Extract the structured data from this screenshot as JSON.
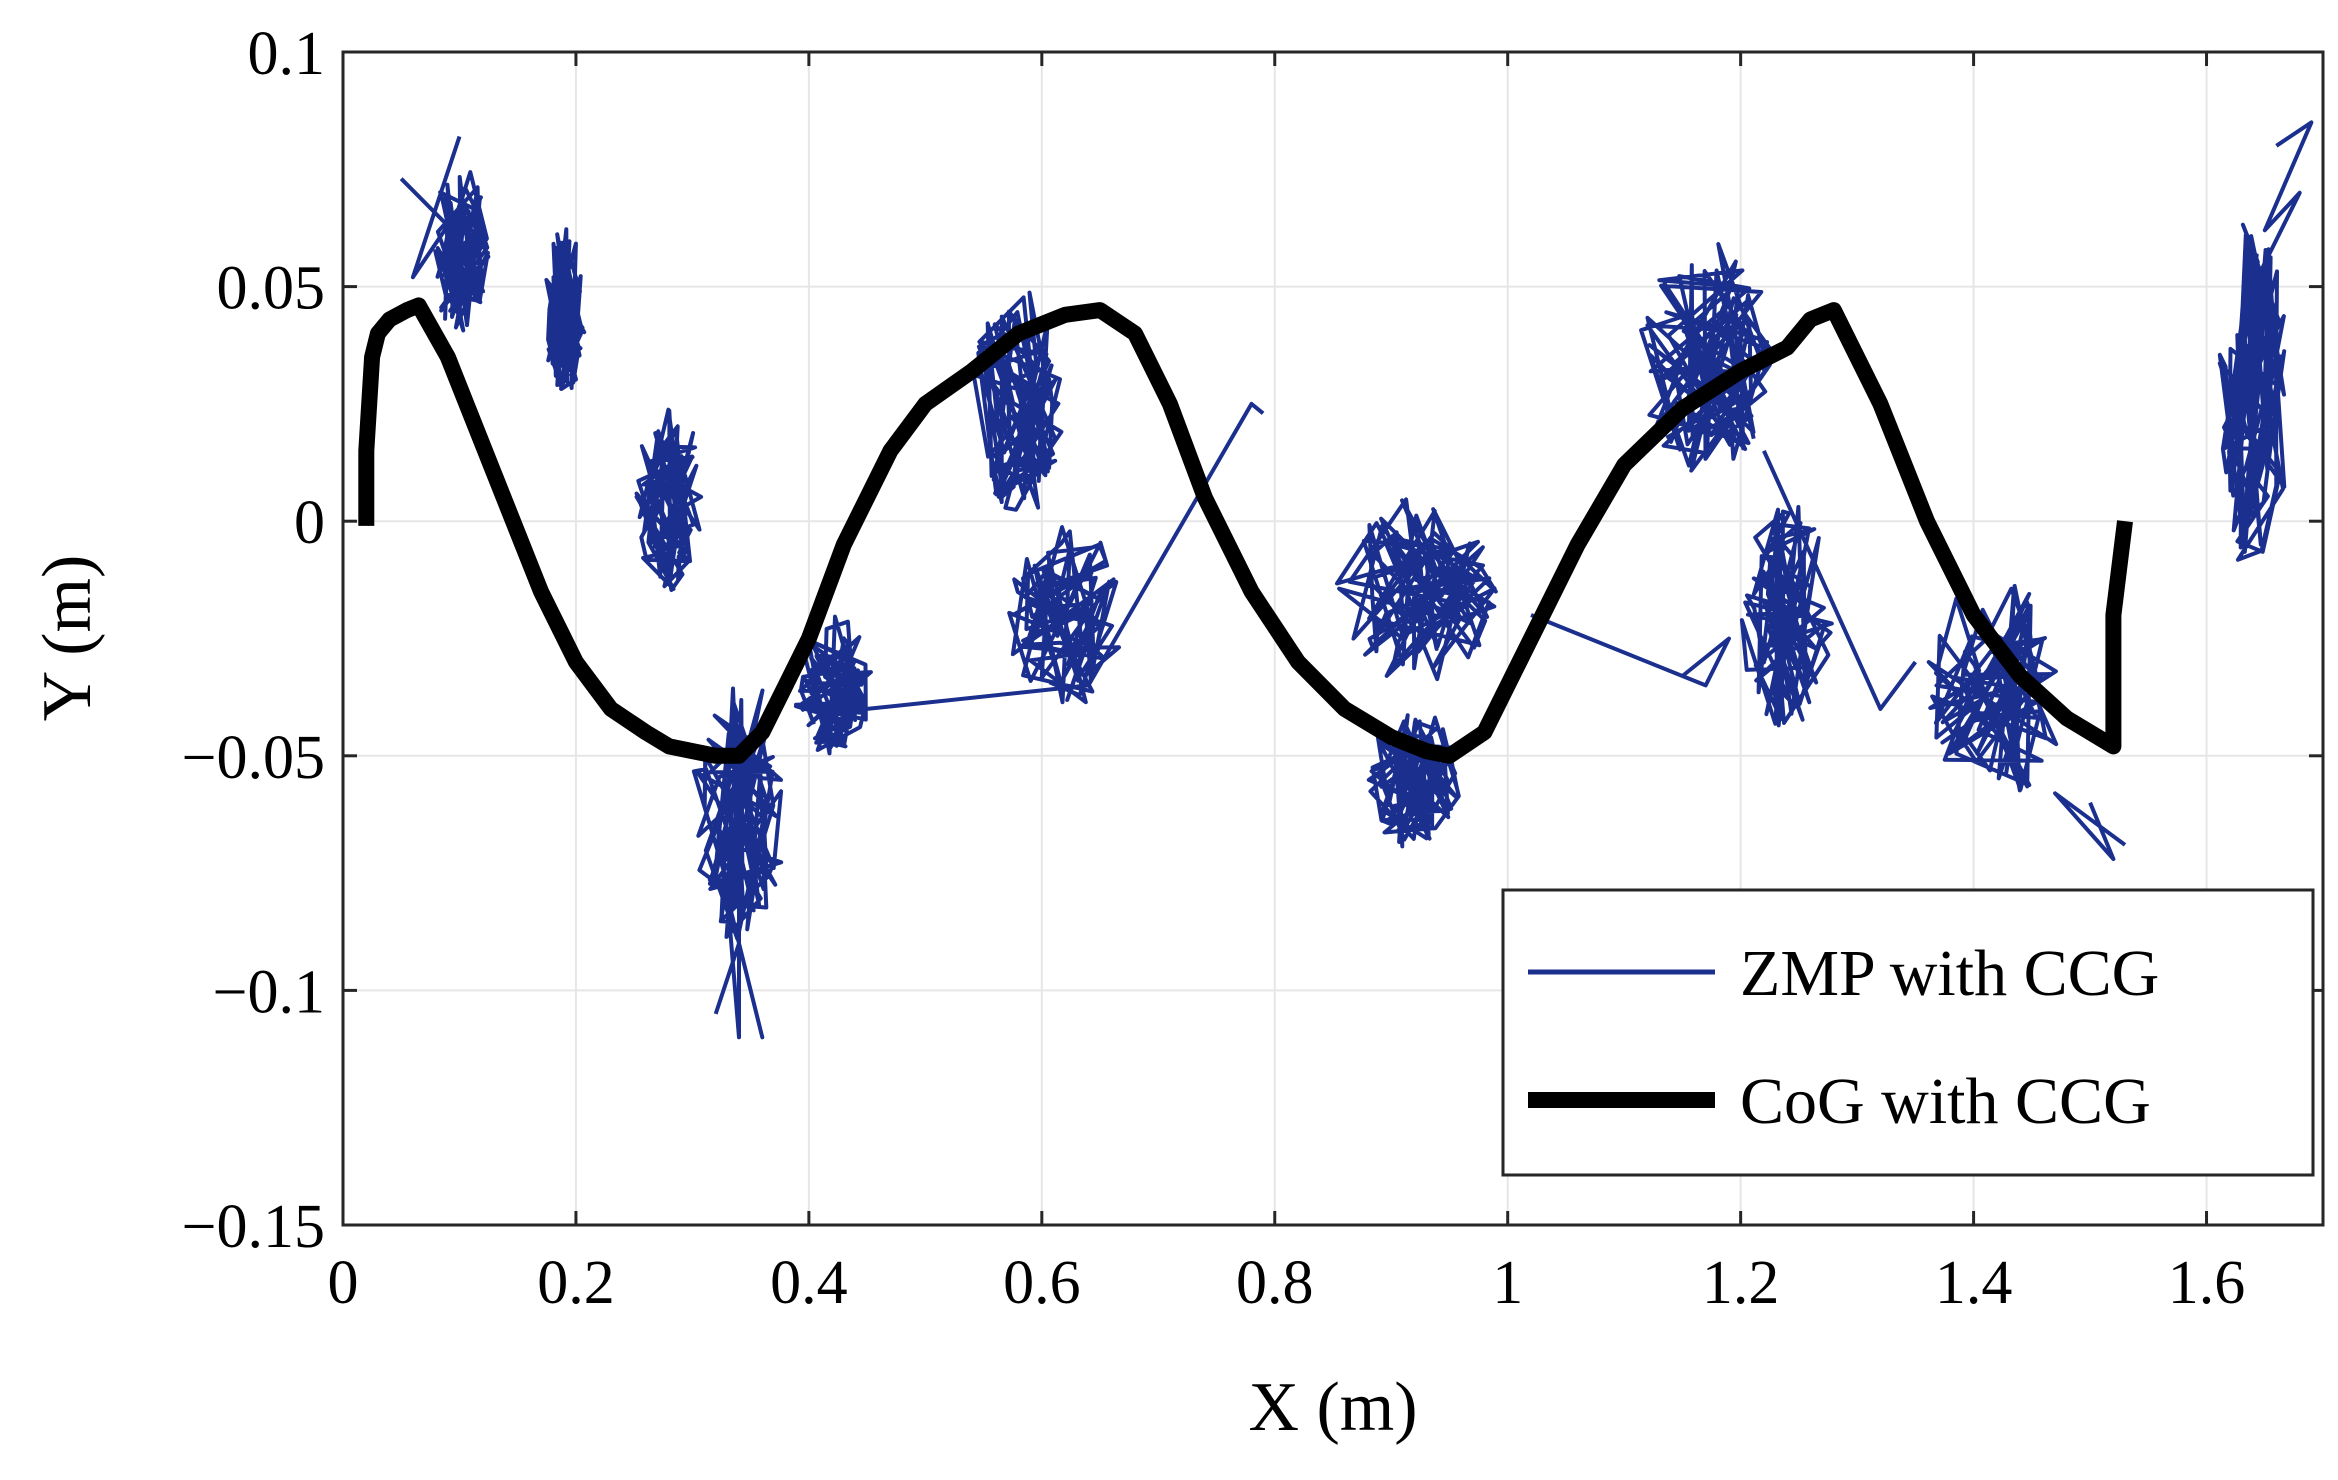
{
  "chart_data": {
    "type": "line",
    "title": "",
    "xlabel": "X (m)",
    "ylabel": "Y (m)",
    "xlim": [
      0,
      1.7
    ],
    "ylim": [
      -0.15,
      0.1
    ],
    "xticks": [
      0,
      0.2,
      0.4,
      0.6,
      0.8,
      1.0,
      1.2,
      1.4,
      1.6
    ],
    "xtick_labels": [
      "0",
      "0.2",
      "0.4",
      "0.6",
      "0.8",
      "1",
      "1.2",
      "1.4",
      "1.6"
    ],
    "yticks": [
      -0.15,
      -0.1,
      -0.05,
      0,
      0.05,
      0.1
    ],
    "ytick_labels": [
      "−0.15",
      "−0.1",
      "−0.05",
      "0",
      "0.05",
      "0.1"
    ],
    "grid": true,
    "legend_position": "bottom-right",
    "series": [
      {
        "name": "ZMP with CCG",
        "color": "#1b2f8e",
        "style": "thin",
        "clusters": [
          {
            "cx": 0.1,
            "cy": 0.058,
            "sx": 0.025,
            "sy": 0.018
          },
          {
            "cx": 0.19,
            "cy": 0.045,
            "sx": 0.018,
            "sy": 0.018
          },
          {
            "cx": 0.28,
            "cy": 0.005,
            "sx": 0.03,
            "sy": 0.02
          },
          {
            "cx": 0.34,
            "cy": -0.06,
            "sx": 0.04,
            "sy": 0.03
          },
          {
            "cx": 0.42,
            "cy": -0.035,
            "sx": 0.035,
            "sy": 0.015
          },
          {
            "cx": 0.58,
            "cy": 0.025,
            "sx": 0.04,
            "sy": 0.025
          },
          {
            "cx": 0.62,
            "cy": -0.02,
            "sx": 0.05,
            "sy": 0.02
          },
          {
            "cx": 0.92,
            "cy": -0.015,
            "sx": 0.07,
            "sy": 0.02
          },
          {
            "cx": 0.92,
            "cy": -0.055,
            "sx": 0.04,
            "sy": 0.015
          },
          {
            "cx": 1.17,
            "cy": 0.035,
            "sx": 0.06,
            "sy": 0.025
          },
          {
            "cx": 1.24,
            "cy": -0.02,
            "sx": 0.04,
            "sy": 0.025
          },
          {
            "cx": 1.42,
            "cy": -0.035,
            "sx": 0.06,
            "sy": 0.025
          },
          {
            "cx": 1.64,
            "cy": 0.025,
            "sx": 0.03,
            "sy": 0.04
          }
        ],
        "strokes": [
          {
            "x": [
              0.05,
              0.09,
              0.06,
              0.1
            ],
            "y": [
              0.073,
              0.063,
              0.052,
              0.082
            ]
          },
          {
            "x": [
              0.34,
              0.34,
              0.33,
              0.36,
              0.34,
              0.32
            ],
            "y": [
              -0.06,
              -0.11,
              -0.08,
              -0.11,
              -0.09,
              -0.105
            ]
          },
          {
            "x": [
              0.45,
              0.64,
              0.78,
              0.79
            ],
            "y": [
              -0.04,
              -0.035,
              0.025,
              0.023
            ]
          },
          {
            "x": [
              1.02,
              1.17,
              1.19,
              1.15
            ],
            "y": [
              -0.02,
              -0.035,
              -0.025,
              -0.033
            ]
          },
          {
            "x": [
              1.22,
              1.32,
              1.35
            ],
            "y": [
              0.015,
              -0.04,
              -0.03
            ]
          },
          {
            "x": [
              1.5,
              1.52,
              1.47,
              1.53
            ],
            "y": [
              -0.06,
              -0.072,
              -0.058,
              -0.069
            ]
          },
          {
            "x": [
              1.66,
              1.69,
              1.65,
              1.68,
              1.64
            ],
            "y": [
              0.08,
              0.085,
              0.062,
              0.07,
              0.05
            ]
          }
        ]
      },
      {
        "name": "CoG with CCG",
        "color": "#000000",
        "style": "thick",
        "x": [
          0.02,
          0.02,
          0.025,
          0.03,
          0.04,
          0.055,
          0.065,
          0.09,
          0.13,
          0.17,
          0.2,
          0.23,
          0.26,
          0.28,
          0.3,
          0.32,
          0.34,
          0.36,
          0.38,
          0.4,
          0.43,
          0.47,
          0.5,
          0.54,
          0.58,
          0.62,
          0.65,
          0.68,
          0.71,
          0.74,
          0.78,
          0.82,
          0.86,
          0.9,
          0.93,
          0.95,
          0.98,
          1.02,
          1.06,
          1.1,
          1.15,
          1.2,
          1.24,
          1.26,
          1.28,
          1.32,
          1.36,
          1.4,
          1.44,
          1.48,
          1.52,
          1.52,
          1.53
        ],
        "y": [
          -0.001,
          0.015,
          0.035,
          0.04,
          0.043,
          0.045,
          0.046,
          0.035,
          0.01,
          -0.015,
          -0.03,
          -0.04,
          -0.045,
          -0.048,
          -0.049,
          -0.05,
          -0.05,
          -0.045,
          -0.035,
          -0.025,
          -0.005,
          0.015,
          0.025,
          0.032,
          0.04,
          0.044,
          0.045,
          0.04,
          0.025,
          0.005,
          -0.015,
          -0.03,
          -0.04,
          -0.046,
          -0.049,
          -0.05,
          -0.045,
          -0.025,
          -0.005,
          0.012,
          0.024,
          0.032,
          0.037,
          0.043,
          0.045,
          0.025,
          0.0,
          -0.02,
          -0.033,
          -0.042,
          -0.048,
          -0.02,
          0.0
        ]
      }
    ]
  },
  "colors": {
    "zmp": "#1b2f8e",
    "cog": "#000000",
    "grid": "#e6e6e6",
    "axis": "#262626"
  }
}
